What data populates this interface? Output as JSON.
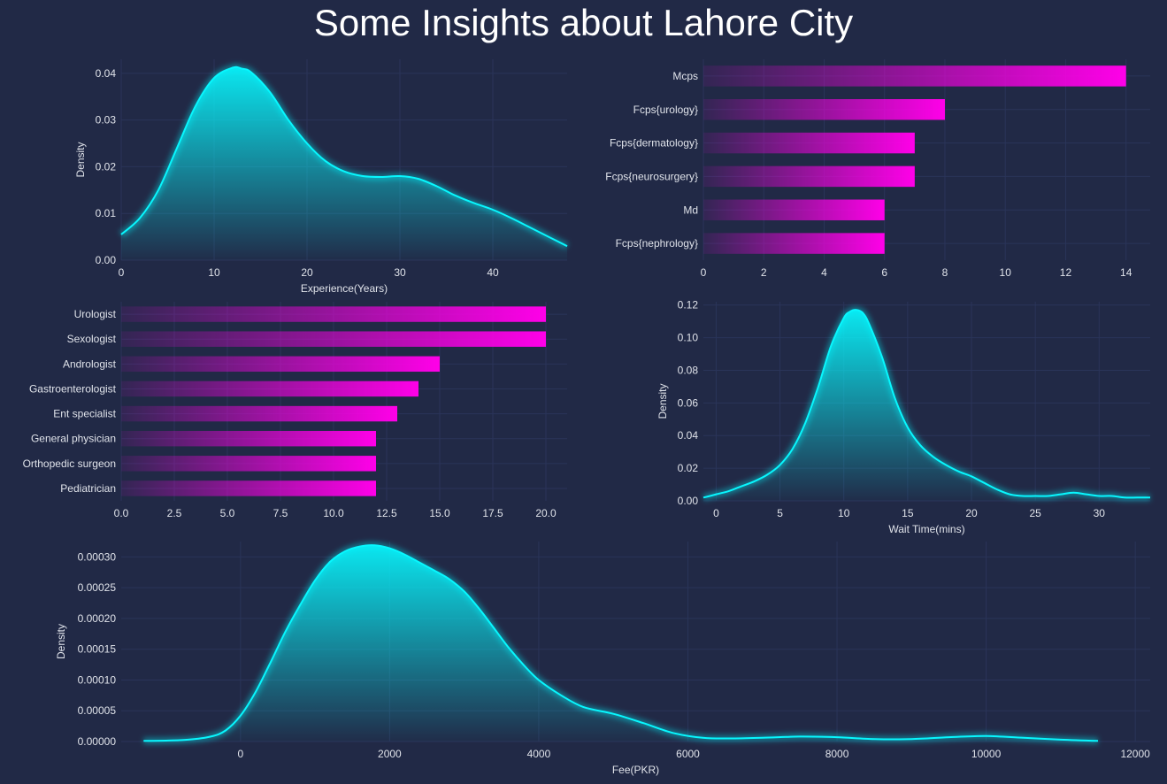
{
  "title": "Some Insights about Lahore City",
  "colors": {
    "background": "#212946",
    "grid": "#2A3459",
    "cyan": "#08F7FE",
    "magenta": "#FF00E8",
    "text": "#E0E3EA"
  },
  "chart_data": [
    {
      "id": "experience",
      "type": "area",
      "xlabel": "Experience(Years)",
      "ylabel": "Density",
      "xlim": [
        0,
        48
      ],
      "ylim": [
        0,
        0.043
      ],
      "xticks": [
        "0",
        "10",
        "20",
        "30",
        "40"
      ],
      "xtick_values": [
        0,
        10,
        20,
        30,
        40
      ],
      "yticks": [
        "0.00",
        "0.01",
        "0.02",
        "0.03",
        "0.04"
      ],
      "ytick_values": [
        0,
        0.01,
        0.02,
        0.03,
        0.04
      ],
      "grid": true,
      "x": [
        0,
        2,
        4,
        6,
        8,
        10,
        12,
        13,
        14,
        16,
        18,
        20,
        22,
        24,
        26,
        28,
        30,
        32,
        34,
        36,
        38,
        40,
        42,
        44,
        46,
        48
      ],
      "y": [
        0.0055,
        0.009,
        0.015,
        0.024,
        0.033,
        0.039,
        0.0412,
        0.041,
        0.0402,
        0.036,
        0.03,
        0.025,
        0.0212,
        0.019,
        0.018,
        0.0178,
        0.018,
        0.0174,
        0.0158,
        0.0138,
        0.0122,
        0.0108,
        0.009,
        0.007,
        0.005,
        0.003
      ]
    },
    {
      "id": "degrees",
      "type": "bar",
      "orientation": "horizontal",
      "categories": [
        "Mcps",
        "Fcps{urology}",
        "Fcps{dermatology}",
        "Fcps{neurosurgery}",
        "Md",
        "Fcps{nephrology}"
      ],
      "values": [
        14,
        8,
        7,
        7,
        6,
        6
      ],
      "xlim": [
        0,
        14.8
      ],
      "xticks": [
        "0",
        "2",
        "4",
        "6",
        "8",
        "10",
        "12",
        "14"
      ],
      "xtick_values": [
        0,
        2,
        4,
        6,
        8,
        10,
        12,
        14
      ],
      "grid": true
    },
    {
      "id": "specialities",
      "type": "bar",
      "orientation": "horizontal",
      "categories": [
        "Urologist",
        "Sexologist",
        "Andrologist",
        "Gastroenterologist",
        "Ent specialist",
        "General physician",
        "Orthopedic surgeon",
        "Pediatrician"
      ],
      "values": [
        20,
        20,
        15,
        14,
        13,
        12,
        12,
        12
      ],
      "xlim": [
        0,
        21
      ],
      "xticks": [
        "0.0",
        "2.5",
        "5.0",
        "7.5",
        "10.0",
        "12.5",
        "15.0",
        "17.5",
        "20.0"
      ],
      "xtick_values": [
        0,
        2.5,
        5,
        7.5,
        10,
        12.5,
        15,
        17.5,
        20
      ],
      "grid": true
    },
    {
      "id": "wait_time",
      "type": "area",
      "xlabel": "Wait Time(mins)",
      "ylabel": "Density",
      "xlim": [
        -1,
        34
      ],
      "ylim": [
        0,
        0.122
      ],
      "xticks": [
        "0",
        "5",
        "10",
        "15",
        "20",
        "25",
        "30"
      ],
      "xtick_values": [
        0,
        5,
        10,
        15,
        20,
        25,
        30
      ],
      "yticks": [
        "0.00",
        "0.02",
        "0.04",
        "0.06",
        "0.08",
        "0.10",
        "0.12"
      ],
      "ytick_values": [
        0,
        0.02,
        0.04,
        0.06,
        0.08,
        0.1,
        0.12
      ],
      "grid": true,
      "x": [
        -1,
        0,
        1,
        2,
        3,
        4,
        5,
        6,
        7,
        8,
        9,
        10,
        10.5,
        11,
        11.5,
        12,
        13,
        14,
        15,
        16,
        17,
        18,
        19,
        20,
        21,
        22,
        23,
        24,
        25,
        26,
        27,
        28,
        29,
        30,
        31,
        32,
        33,
        34
      ],
      "y": [
        0.002,
        0.004,
        0.006,
        0.009,
        0.012,
        0.016,
        0.022,
        0.032,
        0.048,
        0.07,
        0.095,
        0.112,
        0.116,
        0.117,
        0.115,
        0.108,
        0.088,
        0.063,
        0.045,
        0.034,
        0.027,
        0.022,
        0.018,
        0.015,
        0.011,
        0.007,
        0.004,
        0.003,
        0.003,
        0.003,
        0.004,
        0.005,
        0.004,
        0.003,
        0.003,
        0.002,
        0.002,
        0.002
      ]
    },
    {
      "id": "fee",
      "type": "area",
      "xlabel": "Fee(PKR)",
      "ylabel": "Density",
      "xlim": [
        -1600,
        12200
      ],
      "ylim": [
        0,
        0.000325
      ],
      "xticks": [
        "0",
        "2000",
        "4000",
        "6000",
        "8000",
        "10000",
        "12000"
      ],
      "xtick_values": [
        0,
        2000,
        4000,
        6000,
        8000,
        10000,
        12000
      ],
      "yticks": [
        "0.00000",
        "0.00005",
        "0.00010",
        "0.00015",
        "0.00020",
        "0.00025",
        "0.00030"
      ],
      "ytick_values": [
        0,
        5e-05,
        0.0001,
        0.00015,
        0.0002,
        0.00025,
        0.0003
      ],
      "grid": true,
      "x": [
        -1300,
        -1000,
        -700,
        -400,
        -200,
        0,
        200,
        400,
        600,
        800,
        1000,
        1200,
        1400,
        1600,
        1800,
        2000,
        2200,
        2400,
        2600,
        2800,
        3000,
        3200,
        3400,
        3600,
        3800,
        4000,
        4300,
        4600,
        5000,
        5400,
        5800,
        6200,
        6600,
        7000,
        7500,
        8000,
        8500,
        9000,
        9500,
        10000,
        10500,
        11000,
        11500
      ],
      "y": [
        1e-06,
        1.5e-06,
        3e-06,
        8e-06,
        1.8e-05,
        4.2e-05,
        8e-05,
        0.000128,
        0.000178,
        0.000222,
        0.000262,
        0.000292,
        0.000309,
        0.000317,
        0.000319,
        0.000314,
        0.000304,
        0.000291,
        0.000278,
        0.000264,
        0.000244,
        0.000216,
        0.000184,
        0.000152,
        0.000124,
        0.0001,
        7.5e-05,
        5.6e-05,
        4.5e-05,
        3e-05,
        1.4e-05,
        6e-06,
        5e-06,
        6e-06,
        8e-06,
        7e-06,
        4e-06,
        4e-06,
        7e-06,
        9e-06,
        6e-06,
        3e-06,
        1e-06
      ]
    }
  ]
}
